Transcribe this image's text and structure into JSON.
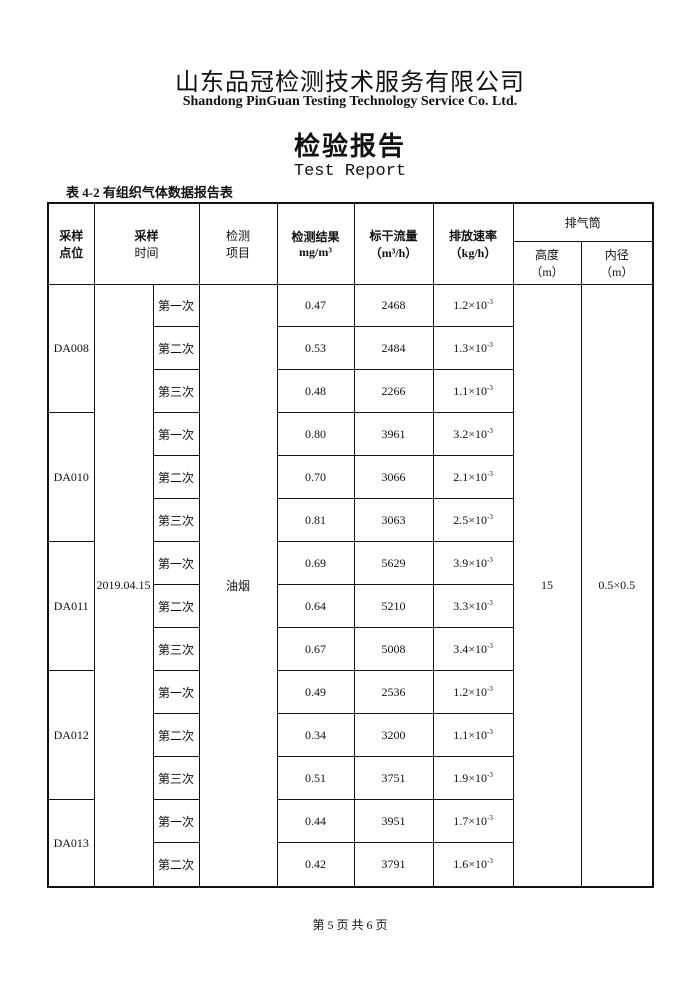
{
  "header": {
    "company": "山东品冠检测技术服务有限公司",
    "company_en": "Shandong PinGuan Testing Technology Service Co. Ltd.",
    "title": "检验报告",
    "title_en": "Test Report"
  },
  "table": {
    "caption": "表 4-2 有组织气体数据报告表",
    "columns": {
      "point": [
        "采样",
        "点位"
      ],
      "time": [
        "采样",
        "时间"
      ],
      "item": [
        "检测",
        "项目"
      ],
      "result": [
        "检测结果",
        "mg/m³"
      ],
      "flow": [
        "标干流量",
        "（m³/h）"
      ],
      "rate": [
        "排放速率",
        "（kg/h）"
      ],
      "stack": "排气筒",
      "height": [
        "高度",
        "（m）"
      ],
      "diameter": [
        "内径",
        "（m）"
      ]
    },
    "date": "2019.04.15",
    "item": "油烟",
    "height": "15",
    "diameter": "0.5×0.5",
    "groups": [
      {
        "point": "DA008",
        "samples": [
          {
            "seq": "第一次",
            "result": "0.47",
            "flow": "2468",
            "rate": {
              "base": "1.2×10",
              "exp": "-3"
            }
          },
          {
            "seq": "第二次",
            "result": "0.53",
            "flow": "2484",
            "rate": {
              "base": "1.3×10",
              "exp": "-3"
            }
          },
          {
            "seq": "第三次",
            "result": "0.48",
            "flow": "2266",
            "rate": {
              "base": "1.1×10",
              "exp": "-3"
            }
          }
        ]
      },
      {
        "point": "DA010",
        "samples": [
          {
            "seq": "第一次",
            "result": "0.80",
            "flow": "3961",
            "rate": {
              "base": "3.2×10",
              "exp": "-3"
            }
          },
          {
            "seq": "第二次",
            "result": "0.70",
            "flow": "3066",
            "rate": {
              "base": "2.1×10",
              "exp": "-3"
            }
          },
          {
            "seq": "第三次",
            "result": "0.81",
            "flow": "3063",
            "rate": {
              "base": "2.5×10",
              "exp": "-3"
            }
          }
        ]
      },
      {
        "point": "DA011",
        "samples": [
          {
            "seq": "第一次",
            "result": "0.69",
            "flow": "5629",
            "rate": {
              "base": "3.9×10",
              "exp": "-3"
            }
          },
          {
            "seq": "第二次",
            "result": "0.64",
            "flow": "5210",
            "rate": {
              "base": "3.3×10",
              "exp": "-3"
            }
          },
          {
            "seq": "第三次",
            "result": "0.67",
            "flow": "5008",
            "rate": {
              "base": "3.4×10",
              "exp": "-3"
            }
          }
        ]
      },
      {
        "point": "DA012",
        "samples": [
          {
            "seq": "第一次",
            "result": "0.49",
            "flow": "2536",
            "rate": {
              "base": "1.2×10",
              "exp": "-3"
            }
          },
          {
            "seq": "第二次",
            "result": "0.34",
            "flow": "3200",
            "rate": {
              "base": "1.1×10",
              "exp": "-3"
            }
          },
          {
            "seq": "第三次",
            "result": "0.51",
            "flow": "3751",
            "rate": {
              "base": "1.9×10",
              "exp": "-3"
            }
          }
        ]
      },
      {
        "point": "DA013",
        "samples": [
          {
            "seq": "第一次",
            "result": "0.44",
            "flow": "3951",
            "rate": {
              "base": "1.7×10",
              "exp": "-3"
            }
          },
          {
            "seq": "第二次",
            "result": "0.42",
            "flow": "3791",
            "rate": {
              "base": "1.6×10",
              "exp": "-3"
            }
          }
        ]
      }
    ]
  },
  "footer": "第 5 页 共 6 页"
}
